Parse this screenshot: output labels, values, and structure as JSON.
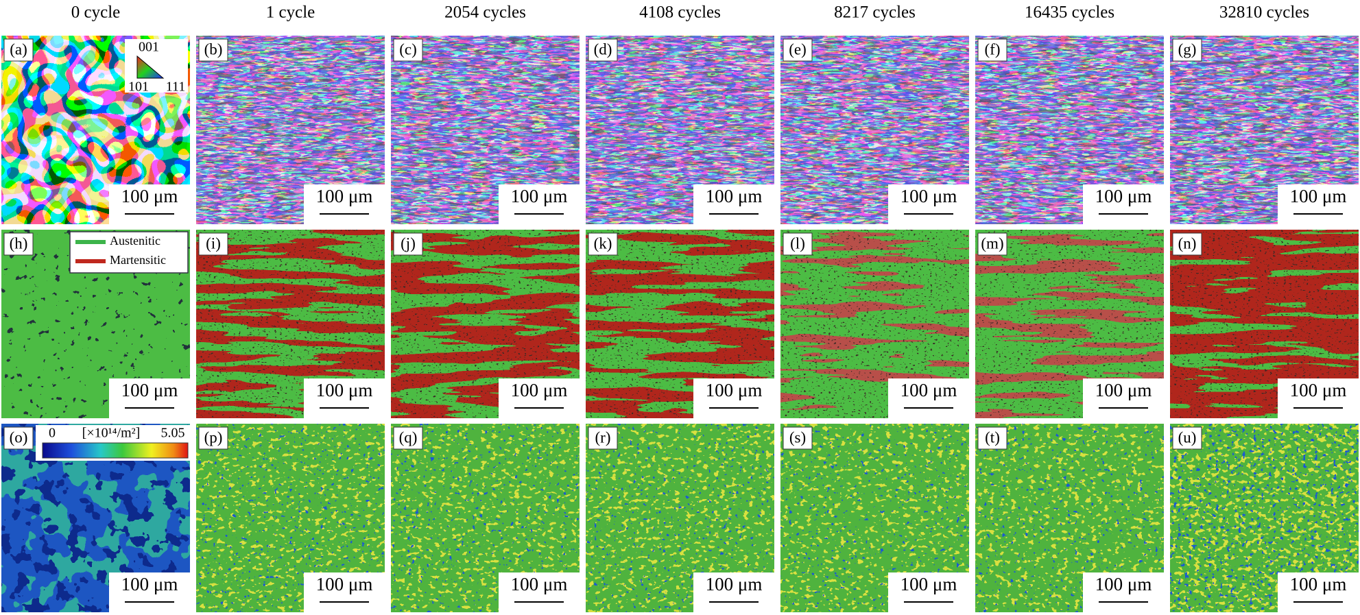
{
  "columns": [
    "0 cycle",
    "1 cycle",
    "2054 cycles",
    "4108 cycles",
    "8217 cycles",
    "16435 cycles",
    "32810 cycles"
  ],
  "panels": [
    {
      "label": "(a)",
      "scale_bar": "100 μm"
    },
    {
      "label": "(b)",
      "scale_bar": "100 μm"
    },
    {
      "label": "(c)",
      "scale_bar": "100 μm"
    },
    {
      "label": "(d)",
      "scale_bar": "100 μm"
    },
    {
      "label": "(e)",
      "scale_bar": "100 μm"
    },
    {
      "label": "(f)",
      "scale_bar": "100 μm"
    },
    {
      "label": "(g)",
      "scale_bar": "100 μm"
    },
    {
      "label": "(h)",
      "scale_bar": "100 μm"
    },
    {
      "label": "(i)",
      "scale_bar": "100 μm"
    },
    {
      "label": "(j)",
      "scale_bar": "100 μm"
    },
    {
      "label": "(k)",
      "scale_bar": "100 μm"
    },
    {
      "label": "(l)",
      "scale_bar": "100 μm"
    },
    {
      "label": "(m)",
      "scale_bar": "100 μm"
    },
    {
      "label": "(n)",
      "scale_bar": "100 μm"
    },
    {
      "label": "(o)",
      "scale_bar": "100 μm"
    },
    {
      "label": "(p)",
      "scale_bar": "100 μm"
    },
    {
      "label": "(q)",
      "scale_bar": "100 μm"
    },
    {
      "label": "(r)",
      "scale_bar": "100 μm"
    },
    {
      "label": "(s)",
      "scale_bar": "100 μm"
    },
    {
      "label": "(t)",
      "scale_bar": "100 μm"
    },
    {
      "label": "(u)",
      "scale_bar": "100 μm"
    }
  ],
  "ipf_legend": [
    "001",
    "101",
    "111"
  ],
  "phase_legend": [
    "Austenitic",
    "Martensitic"
  ],
  "colorbar": {
    "min": 0,
    "unit": "[×10¹⁴/m²]",
    "max": 5.05
  }
}
